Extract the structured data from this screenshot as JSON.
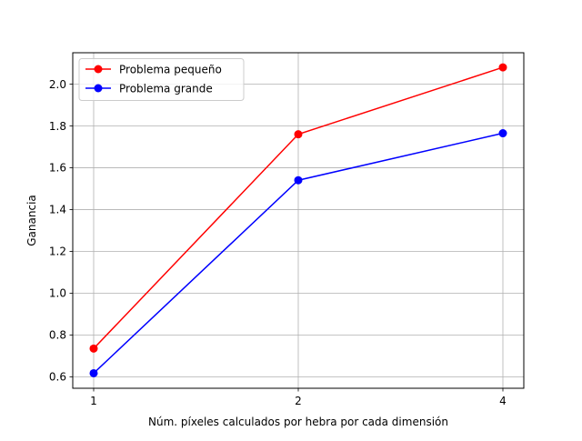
{
  "chart_data": {
    "type": "line",
    "title": "",
    "xlabel": "Núm. píxeles calculados por hebra por cada dimensión",
    "ylabel": "Ganancia",
    "x_tick_labels": [
      "1",
      "2",
      "4"
    ],
    "y_tick_labels": [
      "0.6",
      "0.8",
      "1.0",
      "1.2",
      "1.4",
      "1.6",
      "1.8",
      "2.0"
    ],
    "y_ticks": [
      0.6,
      0.8,
      1.0,
      1.2,
      1.4,
      1.6,
      1.8,
      2.0
    ],
    "ylim": [
      0.545,
      2.15
    ],
    "grid": true,
    "legend_position": "upper-left",
    "series": [
      {
        "name": "Problema pequeño",
        "color": "#ff0000",
        "values": [
          0.735,
          1.76,
          2.08
        ]
      },
      {
        "name": "Problema grande",
        "color": "#0000ff",
        "values": [
          0.617,
          1.54,
          1.765
        ]
      }
    ]
  }
}
